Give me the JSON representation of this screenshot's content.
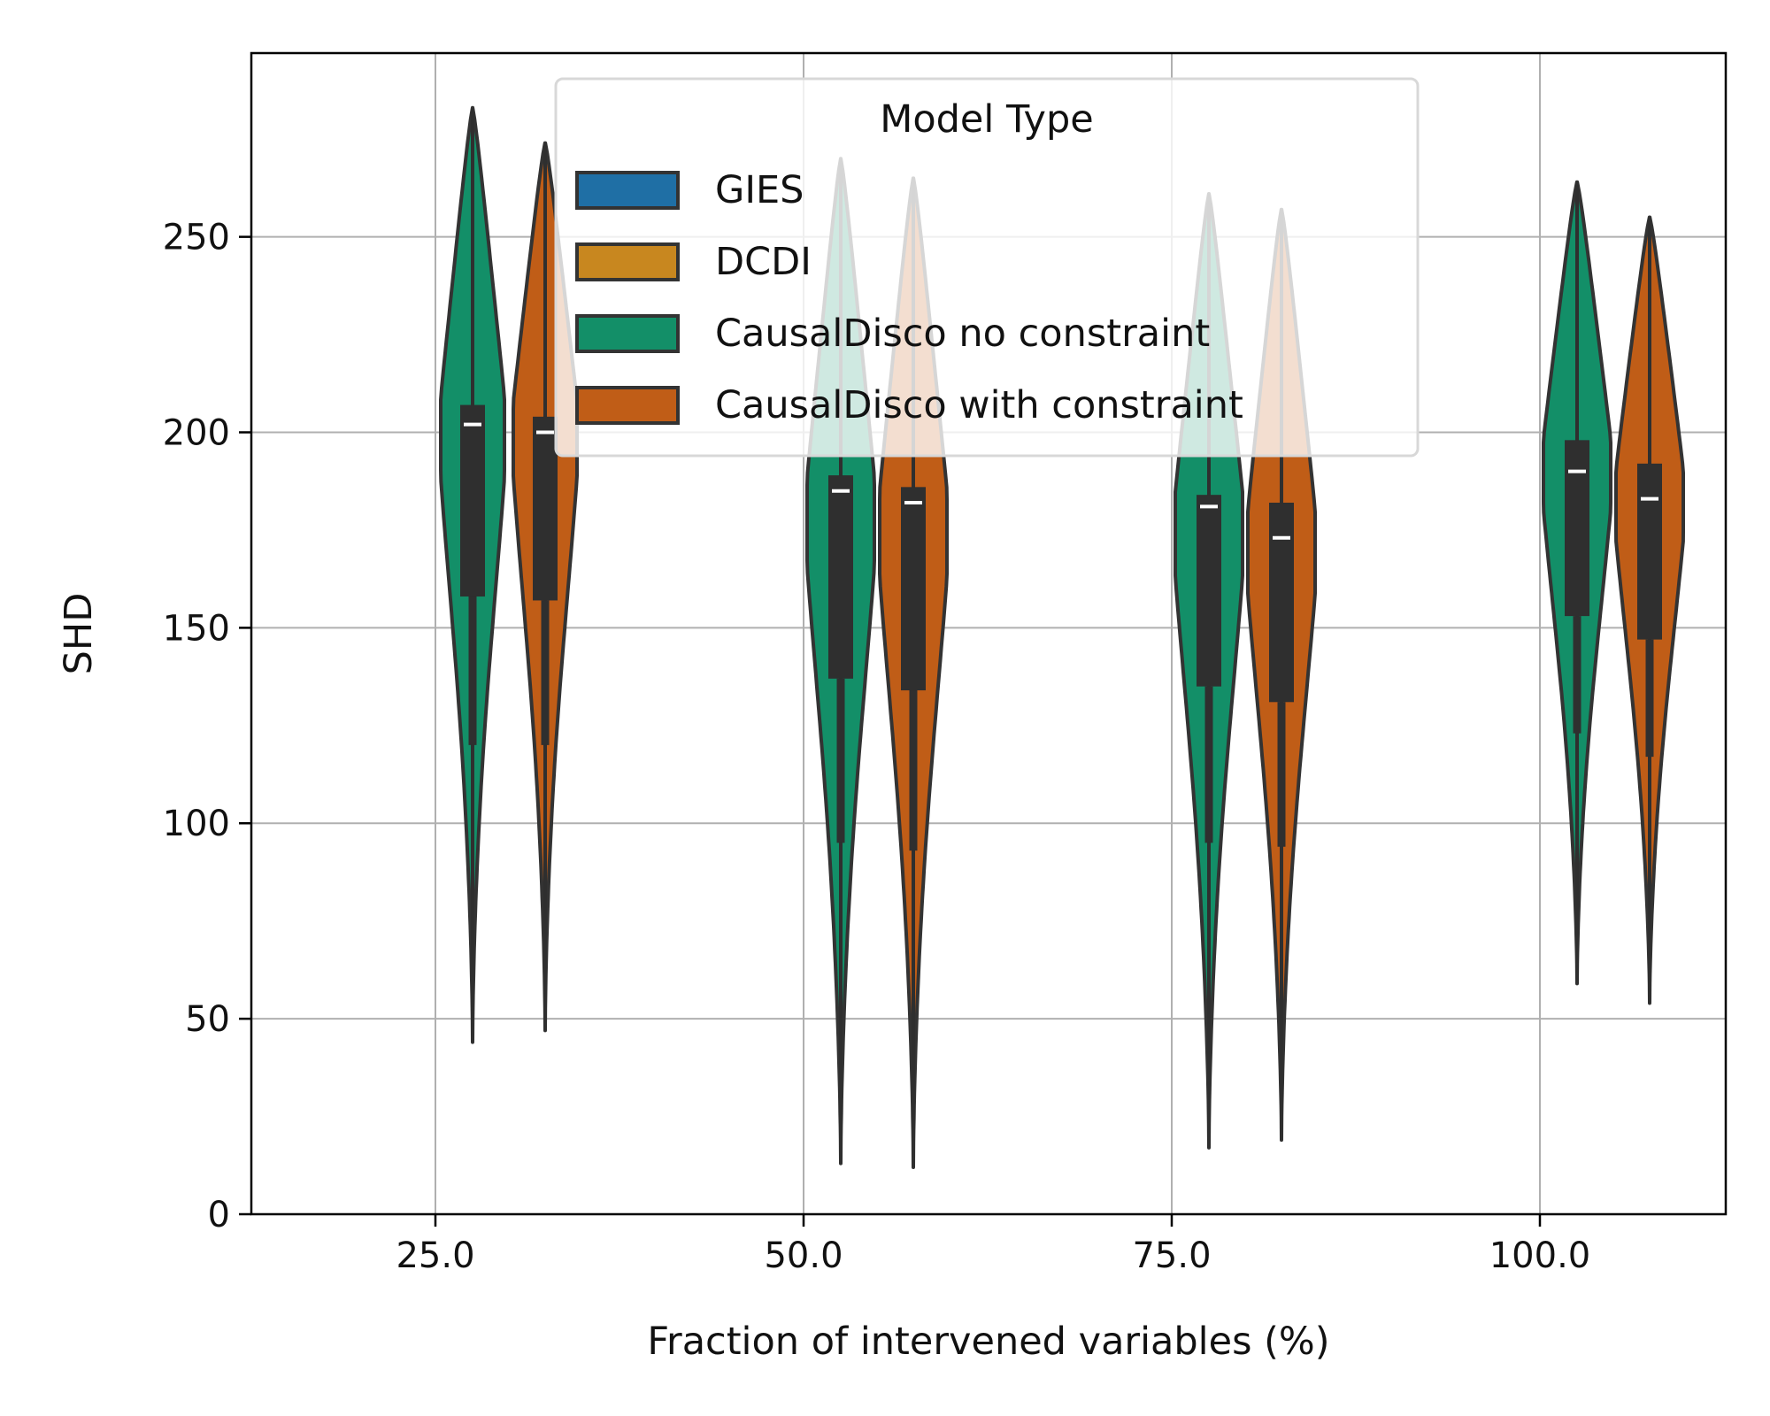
{
  "chart_data": {
    "type": "violin",
    "xlabel": "Fraction of intervened variables (%)",
    "ylabel": "SHD",
    "ylim": [
      0,
      297
    ],
    "yticks": [
      0,
      50,
      100,
      150,
      200,
      250
    ],
    "categories": [
      "25.0",
      "50.0",
      "75.0",
      "100.0"
    ],
    "grid": true,
    "legend": {
      "title": "Model Type",
      "placement": "top-center",
      "entries": [
        {
          "label": "GIES",
          "color": "#1f6fa5"
        },
        {
          "label": "DCDI",
          "color": "#c8871f"
        },
        {
          "label": "CausalDisco no constraint",
          "color": "#138f68"
        },
        {
          "label": "CausalDisco with constraint",
          "color": "#c05d17"
        }
      ]
    },
    "series": [
      {
        "name": "CausalDisco no constraint",
        "color": "#138f68",
        "violins": [
          {
            "category": "25.0",
            "min": 44,
            "whisker_low": 120,
            "q1": 158,
            "median": 202,
            "q3": 207,
            "max": 283,
            "peak": 200,
            "peak_width": 0.9
          },
          {
            "category": "50.0",
            "min": 13,
            "whisker_low": 95,
            "q1": 137,
            "median": 185,
            "q3": 189,
            "max": 270,
            "peak": 178,
            "peak_width": 0.95
          },
          {
            "category": "75.0",
            "min": 17,
            "whisker_low": 95,
            "q1": 135,
            "median": 181,
            "q3": 184,
            "max": 261,
            "peak": 175,
            "peak_width": 0.95
          },
          {
            "category": "100.0",
            "min": 59,
            "whisker_low": 123,
            "q1": 153,
            "median": 190,
            "q3": 198,
            "max": 264,
            "peak": 190,
            "peak_width": 0.95
          }
        ]
      },
      {
        "name": "CausalDisco with constraint",
        "color": "#c05d17",
        "violins": [
          {
            "category": "25.0",
            "min": 47,
            "whisker_low": 120,
            "q1": 157,
            "median": 200,
            "q3": 204,
            "max": 274,
            "peak": 200,
            "peak_width": 0.9
          },
          {
            "category": "50.0",
            "min": 12,
            "whisker_low": 93,
            "q1": 134,
            "median": 182,
            "q3": 186,
            "max": 265,
            "peak": 175,
            "peak_width": 0.95
          },
          {
            "category": "75.0",
            "min": 19,
            "whisker_low": 94,
            "q1": 131,
            "median": 173,
            "q3": 182,
            "max": 257,
            "peak": 170,
            "peak_width": 0.95
          },
          {
            "category": "100.0",
            "min": 54,
            "whisker_low": 117,
            "q1": 147,
            "median": 183,
            "q3": 192,
            "max": 255,
            "peak": 182,
            "peak_width": 0.95
          }
        ]
      }
    ]
  }
}
